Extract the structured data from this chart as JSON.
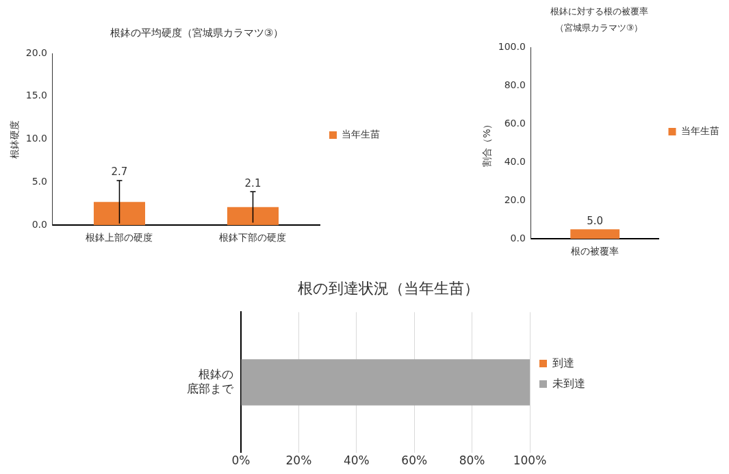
{
  "chart_data": [
    {
      "type": "bar",
      "title": "根鉢の平均硬度（宮城県カラマツ③）",
      "ylabel": "根鉢硬度",
      "categories": [
        "根鉢上部の硬度",
        "根鉢下部の硬度"
      ],
      "series": [
        {
          "name": "当年生苗",
          "color": "#ed7d31",
          "values": [
            2.7,
            2.1
          ],
          "errors": [
            2.5,
            1.8
          ],
          "value_labels": [
            "2.7",
            "2.1"
          ]
        }
      ],
      "ylim": [
        0,
        20
      ],
      "yticks": [
        {
          "value": 0,
          "label": "0.0"
        },
        {
          "value": 5,
          "label": "5.0"
        },
        {
          "value": 10,
          "label": "10.0"
        },
        {
          "value": 15,
          "label": "15.0"
        },
        {
          "value": 20,
          "label": "20.0"
        }
      ],
      "grid": false,
      "legend": "right"
    },
    {
      "type": "bar",
      "title": "根鉢に対する根の被覆率",
      "subtitle": "（宮城県カラマツ③）",
      "ylabel": "割合（%）",
      "categories": [
        "根の被覆率"
      ],
      "series": [
        {
          "name": "当年生苗",
          "color": "#ed7d31",
          "values": [
            5.0
          ],
          "value_labels": [
            "5.0"
          ]
        }
      ],
      "ylim": [
        0,
        100
      ],
      "yticks": [
        {
          "value": 0,
          "label": "0.0"
        },
        {
          "value": 20,
          "label": "20.0"
        },
        {
          "value": 40,
          "label": "40.0"
        },
        {
          "value": 60,
          "label": "60.0"
        },
        {
          "value": 80,
          "label": "80.0"
        },
        {
          "value": 100,
          "label": "100.0"
        }
      ],
      "grid": false,
      "legend": "right"
    },
    {
      "type": "bar",
      "title": "根の到達状況（当年生苗）",
      "categories": [
        "根鉢の底部まで"
      ],
      "orientation": "horizontal",
      "stacked": true,
      "series": [
        {
          "name": "到達",
          "color": "#ed7d31",
          "values": [
            0
          ]
        },
        {
          "name": "未到達",
          "color": "#a5a5a5",
          "values": [
            100
          ]
        }
      ],
      "xlim": [
        0,
        100
      ],
      "xticks": [
        {
          "value": 0,
          "label": "0%"
        },
        {
          "value": 20,
          "label": "20%"
        },
        {
          "value": 40,
          "label": "40%"
        },
        {
          "value": 60,
          "label": "60%"
        },
        {
          "value": 80,
          "label": "80%"
        },
        {
          "value": 100,
          "label": "100%"
        }
      ],
      "grid": "x",
      "legend": "right"
    }
  ]
}
